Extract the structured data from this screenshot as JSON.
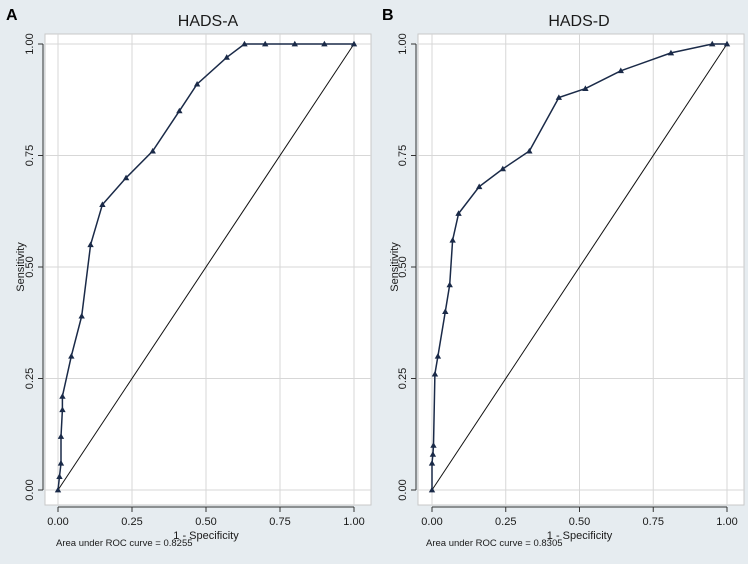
{
  "chart_data": [
    {
      "type": "line",
      "panel_letter": "A",
      "title": "HADS-A",
      "xlabel": "1 - Specificity",
      "ylabel": "Sensitivity",
      "xlim": [
        0,
        1
      ],
      "ylim": [
        0,
        1
      ],
      "x_ticks": [
        "0.00",
        "0.25",
        "0.50",
        "0.75",
        "1.00"
      ],
      "y_ticks": [
        "0.00",
        "0.25",
        "0.50",
        "0.75",
        "1.00"
      ],
      "grid": true,
      "auc_note": "Area under ROC curve = 0.8255",
      "series": [
        {
          "name": "ROC",
          "x": [
            0,
            0.005,
            0.01,
            0.01,
            0.015,
            0.015,
            0.045,
            0.08,
            0.11,
            0.15,
            0.23,
            0.32,
            0.41,
            0.47,
            0.57,
            0.63,
            0.7,
            0.8,
            0.9,
            1.0
          ],
          "y": [
            0,
            0.03,
            0.06,
            0.12,
            0.18,
            0.21,
            0.3,
            0.39,
            0.55,
            0.64,
            0.7,
            0.76,
            0.85,
            0.91,
            0.97,
            1.0,
            1.0,
            1.0,
            1.0,
            1.0
          ]
        }
      ]
    },
    {
      "type": "line",
      "panel_letter": "B",
      "title": "HADS-D",
      "xlabel": "1 - Specificity",
      "ylabel": "Sensitivity",
      "xlim": [
        0,
        1
      ],
      "ylim": [
        0,
        1
      ],
      "x_ticks": [
        "0.00",
        "0.25",
        "0.50",
        "0.75",
        "1.00"
      ],
      "y_ticks": [
        "0.00",
        "0.25",
        "0.50",
        "0.75",
        "1.00"
      ],
      "grid": true,
      "auc_note": "Area under ROC curve = 0.8305",
      "series": [
        {
          "name": "ROC",
          "x": [
            0,
            0,
            0.003,
            0.005,
            0.01,
            0.02,
            0.045,
            0.06,
            0.07,
            0.09,
            0.16,
            0.24,
            0.33,
            0.43,
            0.52,
            0.64,
            0.81,
            0.95,
            1.0
          ],
          "y": [
            0,
            0.06,
            0.08,
            0.1,
            0.26,
            0.3,
            0.4,
            0.46,
            0.56,
            0.62,
            0.68,
            0.72,
            0.76,
            0.88,
            0.9,
            0.94,
            0.98,
            1.0,
            1.0
          ]
        }
      ]
    }
  ]
}
